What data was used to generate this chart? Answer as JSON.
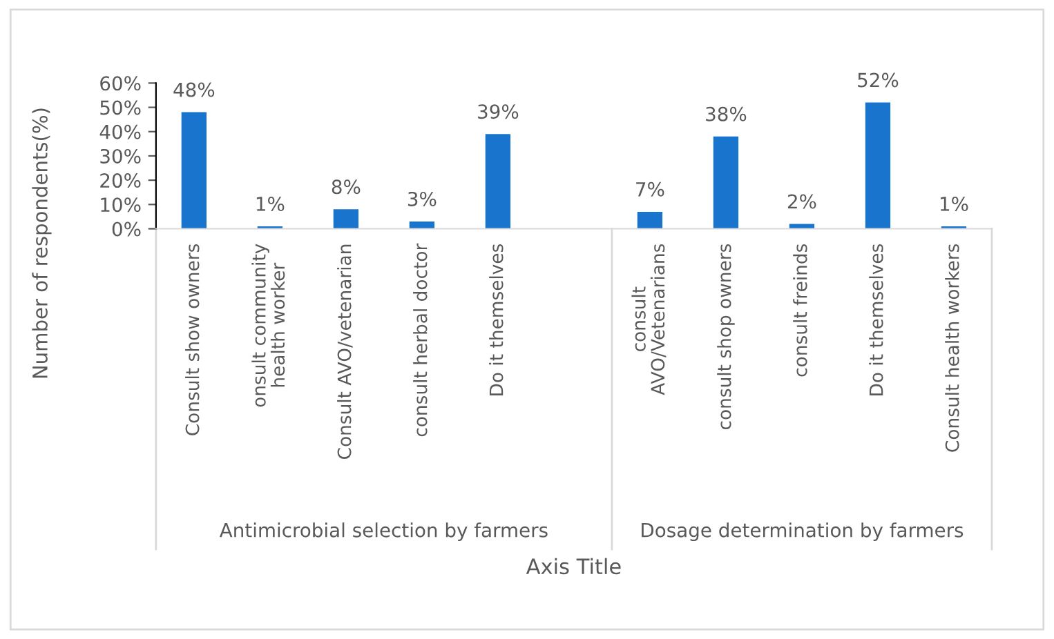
{
  "chart_data": {
    "type": "bar",
    "ylabel": "Number of respondents(%)",
    "xlabel": "Axis Title",
    "categories": [
      "Consult show owners",
      "onsult community health worker",
      "Consult AVO/vetenarian",
      "consult herbal doctor",
      "Do it themselves",
      null,
      "consult AVO/Vetenarians",
      "consult shop owners",
      "consult freinds",
      "Do it themselves",
      "Consult health workers"
    ],
    "values": [
      48,
      1,
      8,
      3,
      39,
      null,
      7,
      38,
      2,
      52,
      1
    ],
    "value_labels": [
      "48%",
      "1%",
      "8%",
      "3%",
      "39%",
      null,
      "7%",
      "38%",
      "2%",
      "52%",
      "1%"
    ],
    "color": "#1874cd",
    "ylim": [
      0,
      60
    ],
    "yticks": [
      {
        "value": 0,
        "label": "0%"
      },
      {
        "value": 10,
        "label": "10%"
      },
      {
        "value": 20,
        "label": "20%"
      },
      {
        "value": 30,
        "label": "30%"
      },
      {
        "value": 40,
        "label": "40%"
      },
      {
        "value": 50,
        "label": "50%"
      },
      {
        "value": 60,
        "label": "60%"
      }
    ],
    "annotations": [
      "Antimicrobial selection by farmers",
      "Dosage determination by farmers"
    ],
    "grid": false,
    "legend": false
  }
}
